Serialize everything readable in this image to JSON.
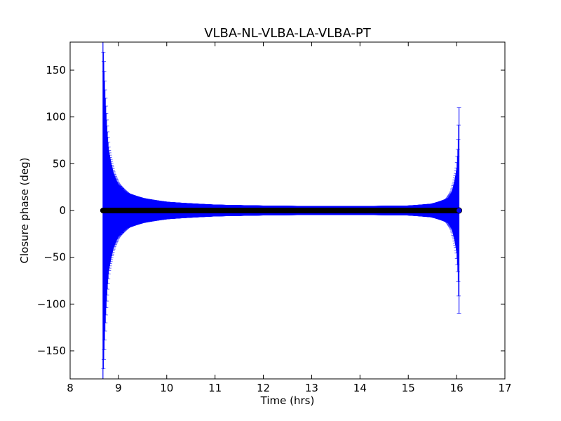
{
  "chart_data": {
    "type": "scatter",
    "title": "VLBA-NL-VLBA-LA-VLBA-PT",
    "xlabel": "Time (hrs)",
    "ylabel": "Closure phase (deg)",
    "xlim": [
      8,
      17
    ],
    "ylim": [
      -180,
      180
    ],
    "xticks": [
      8,
      9,
      10,
      11,
      12,
      13,
      14,
      15,
      16,
      17
    ],
    "yticks": [
      -150,
      -100,
      -50,
      0,
      50,
      100,
      150
    ],
    "grid": false,
    "marker_color": "#000000",
    "errorbar_color": "#0000ff",
    "series": [
      {
        "x_start": 8.68,
        "x_end": 16.05,
        "y_value": 0,
        "error_profile": [
          {
            "x": 8.68,
            "err": 180
          },
          {
            "x": 8.7,
            "err": 155
          },
          {
            "x": 8.75,
            "err": 100
          },
          {
            "x": 8.8,
            "err": 65
          },
          {
            "x": 8.9,
            "err": 40
          },
          {
            "x": 9.0,
            "err": 28
          },
          {
            "x": 9.2,
            "err": 18
          },
          {
            "x": 9.5,
            "err": 13
          },
          {
            "x": 10.0,
            "err": 9
          },
          {
            "x": 11.0,
            "err": 6
          },
          {
            "x": 12.0,
            "err": 5
          },
          {
            "x": 13.0,
            "err": 4.5
          },
          {
            "x": 14.0,
            "err": 4.5
          },
          {
            "x": 15.0,
            "err": 5
          },
          {
            "x": 15.5,
            "err": 7
          },
          {
            "x": 15.8,
            "err": 12
          },
          {
            "x": 15.9,
            "err": 20
          },
          {
            "x": 16.0,
            "err": 45
          },
          {
            "x": 16.03,
            "err": 70
          },
          {
            "x": 16.05,
            "err": 110
          }
        ]
      }
    ]
  }
}
